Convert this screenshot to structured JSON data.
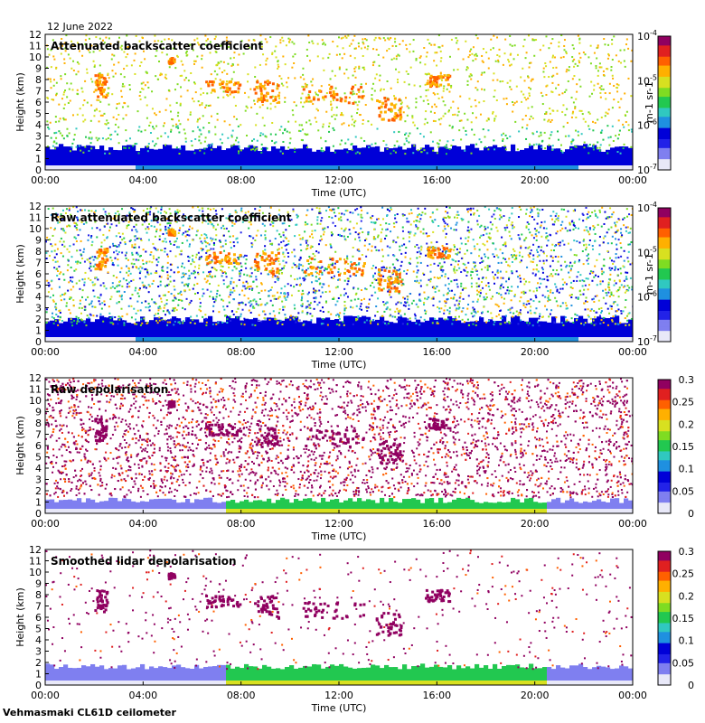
{
  "date": "12 June 2022",
  "footer": "Vehmasmaki CL61D ceilometer",
  "colors": {
    "rainbow": [
      "#e8e8f8",
      "#7f7ff0",
      "#2222e8",
      "#0000d8",
      "#1f90e0",
      "#30c8c0",
      "#22c850",
      "#7fdc22",
      "#d8e020",
      "#ffb000",
      "#ff6000",
      "#e02020",
      "#900060"
    ]
  },
  "chart_data": [
    {
      "type": "heatmap",
      "title": "Attenuated backscatter coefficient",
      "xlabel": "Time (UTC)",
      "ylabel": "Height (km)",
      "x_ticks": [
        "00:00",
        "04:00",
        "08:00",
        "12:00",
        "16:00",
        "20:00",
        "00:00"
      ],
      "y_ticks": [
        "0",
        "1",
        "2",
        "3",
        "4",
        "5",
        "6",
        "7",
        "8",
        "9",
        "10",
        "11",
        "12"
      ],
      "ylim": [
        0,
        12
      ],
      "colorbar": {
        "scale": "log",
        "range": [
          1e-07,
          0.0001
        ],
        "ticks": [
          "10-4",
          "10-5",
          "10-6",
          "10-7"
        ],
        "unit": "m-1 sr-1"
      },
      "features": {
        "boundary_layer_top_km": 2.2,
        "cloud_bands": [
          {
            "time": "02:00-02:30",
            "height_km": [
              6.5,
              8.5
            ]
          },
          {
            "time": "05:00-05:15",
            "height_km": [
              9.5,
              10
            ]
          },
          {
            "time": "06:30-08:00",
            "height_km": [
              7,
              8
            ]
          },
          {
            "time": "08:30-09:30",
            "height_km": [
              6,
              8
            ]
          },
          {
            "time": "10:30-13:00",
            "height_km": [
              6,
              7.5
            ]
          },
          {
            "time": "13:30-14:30",
            "height_km": [
              4.5,
              6.5
            ]
          },
          {
            "time": "15:30-16:30",
            "height_km": [
              7.5,
              8.5
            ]
          }
        ]
      }
    },
    {
      "type": "heatmap",
      "title": "Raw attenuated backscatter coefficient",
      "xlabel": "Time (UTC)",
      "ylabel": "Height (km)",
      "x_ticks": [
        "00:00",
        "04:00",
        "08:00",
        "12:00",
        "16:00",
        "20:00",
        "00:00"
      ],
      "y_ticks": [
        "0",
        "1",
        "2",
        "3",
        "4",
        "5",
        "6",
        "7",
        "8",
        "9",
        "10",
        "11",
        "12"
      ],
      "ylim": [
        0,
        12
      ],
      "colorbar": {
        "scale": "log",
        "range": [
          1e-07,
          0.0001
        ],
        "ticks": [
          "10-4",
          "10-5",
          "10-6",
          "10-7"
        ],
        "unit": "m-1 sr-1"
      }
    },
    {
      "type": "heatmap",
      "title": "Raw depolarisation",
      "xlabel": "Time (UTC)",
      "ylabel": "Height (km)",
      "x_ticks": [
        "00:00",
        "04:00",
        "08:00",
        "12:00",
        "16:00",
        "20:00",
        "00:00"
      ],
      "y_ticks": [
        "0",
        "1",
        "2",
        "3",
        "4",
        "5",
        "6",
        "7",
        "8",
        "9",
        "10",
        "11",
        "12"
      ],
      "ylim": [
        0,
        12
      ],
      "colorbar": {
        "scale": "linear",
        "range": [
          0,
          0.3
        ],
        "ticks": [
          "0.3",
          "0.25",
          "0.2",
          "0.15",
          "0.1",
          "0.05",
          "0"
        ]
      }
    },
    {
      "type": "heatmap",
      "title": "Smoothed lidar depolarisation",
      "xlabel": "Time (UTC)",
      "ylabel": "Height (km)",
      "x_ticks": [
        "00:00",
        "04:00",
        "08:00",
        "12:00",
        "16:00",
        "20:00",
        "00:00"
      ],
      "y_ticks": [
        "0",
        "1",
        "2",
        "3",
        "4",
        "5",
        "6",
        "7",
        "8",
        "9",
        "10",
        "11",
        "12"
      ],
      "ylim": [
        0,
        12
      ],
      "colorbar": {
        "scale": "linear",
        "range": [
          0,
          0.3
        ],
        "ticks": [
          "0.3",
          "0.25",
          "0.2",
          "0.15",
          "0.1",
          "0.05",
          "0"
        ]
      }
    }
  ]
}
